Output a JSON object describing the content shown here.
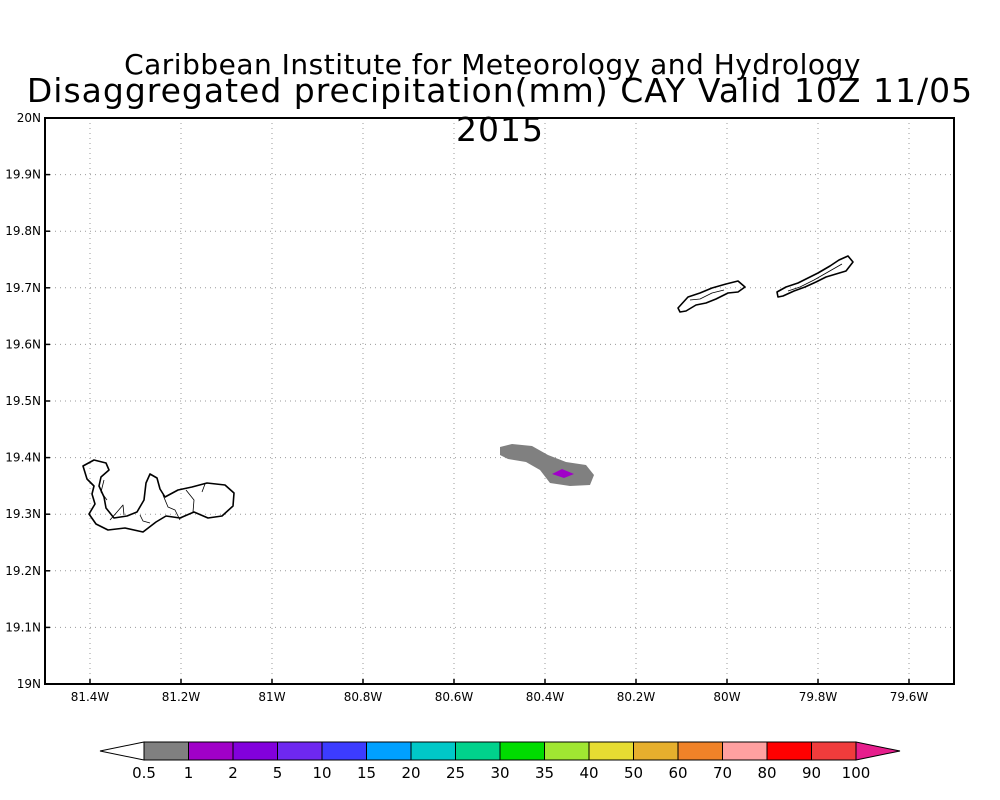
{
  "header": {
    "title": "Caribbean Institute for Meteorology and Hydrology",
    "subtitle": "Disaggregated precipitation(mm) CAY Valid 10Z 11/05 2015"
  },
  "map": {
    "region": "Cayman Islands",
    "lon_range": [
      -81.5,
      -79.5
    ],
    "lat_range": [
      19.0,
      20.0
    ],
    "grid": true,
    "y_ticks": [
      "19N",
      "19.1N",
      "19.2N",
      "19.3N",
      "19.4N",
      "19.5N",
      "19.6N",
      "19.7N",
      "19.8N",
      "19.9N",
      "20N"
    ],
    "x_ticks": [
      "81.4W",
      "81.2W",
      "81W",
      "80.8W",
      "80.6W",
      "80.4W",
      "80.2W",
      "80W",
      "79.8W",
      "79.6W"
    ],
    "precip_areas": [
      {
        "class": "0.5-1",
        "color": "#808080"
      },
      {
        "class": "1-2",
        "color": "#a000c8"
      }
    ]
  },
  "colorbar": {
    "labels": [
      "0.5",
      "1",
      "2",
      "5",
      "10",
      "15",
      "20",
      "25",
      "30",
      "35",
      "40",
      "50",
      "60",
      "70",
      "80",
      "90",
      "100"
    ],
    "colors": [
      "#808080",
      "#a000c8",
      "#8200dc",
      "#6e28f0",
      "#3c3cff",
      "#00a0ff",
      "#00c8c8",
      "#00d28c",
      "#00dc00",
      "#a0e632",
      "#e6dc32",
      "#e6af2d",
      "#f08228",
      "#ffa0a0",
      "#ff0000",
      "#f03c3c"
    ],
    "under_color": "#ffffff",
    "over_color": "#e61e8c"
  }
}
